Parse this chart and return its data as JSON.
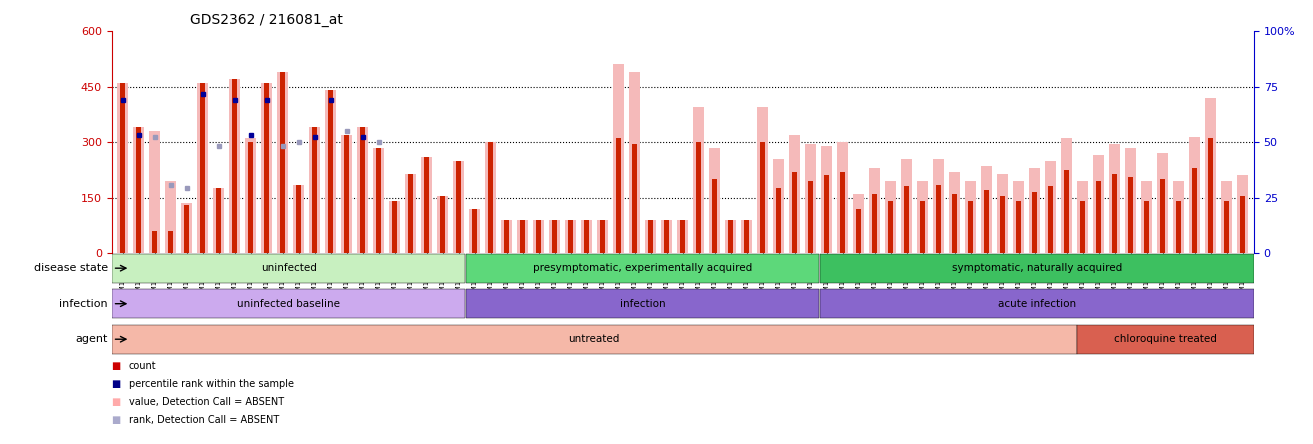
{
  "title": "GDS2362 / 216081_at",
  "ylim_left": [
    0,
    600
  ],
  "ylim_right": [
    0,
    100
  ],
  "yticks_left": [
    0,
    150,
    300,
    450,
    600
  ],
  "yticks_right": [
    0,
    25,
    50,
    75,
    100
  ],
  "left_tick_color": "#cc0000",
  "right_tick_color": "#0000cc",
  "samples": [
    "GSM123732",
    "GSM123736",
    "GSM123740",
    "GSM123744",
    "GSM123746",
    "GSM123750",
    "GSM123752",
    "GSM123756",
    "GSM123758",
    "GSM123761",
    "GSM123763",
    "GSM123765",
    "GSM123769",
    "GSM123771",
    "GSM123774",
    "GSM123778",
    "GSM123780",
    "GSM123784",
    "GSM123787",
    "GSM123791",
    "GSM123799",
    "GSM123800",
    "GSM123730",
    "GSM123734",
    "GSM123738",
    "GSM123742",
    "GSM123745",
    "GSM123748",
    "GSM123751",
    "GSM123754",
    "GSM123757",
    "GSM123760",
    "GSM123762",
    "GSM123764",
    "GSM123767",
    "GSM123770",
    "GSM123773",
    "GSM123777",
    "GSM123779",
    "GSM123782",
    "GSM123786",
    "GSM123789",
    "GSM123793",
    "GSM123797",
    "GSM123729",
    "GSM123733",
    "GSM123737",
    "GSM123741",
    "GSM123747",
    "GSM123753",
    "GSM123759",
    "GSM123766",
    "GSM123772",
    "GSM123775",
    "GSM123781",
    "GSM123785",
    "GSM123788",
    "GSM123792",
    "GSM123796",
    "GSM123731",
    "GSM123735",
    "GSM123739",
    "GSM123743",
    "GSM123749",
    "GSM123755",
    "GSM123768",
    "GSM123776",
    "GSM123783",
    "GSM123790",
    "GSM123794",
    "GSM123798"
  ],
  "red_bars": [
    460,
    340,
    60,
    60,
    130,
    460,
    175,
    470,
    300,
    460,
    490,
    185,
    340,
    440,
    320,
    340,
    285,
    140,
    215,
    260,
    155,
    250,
    120,
    300,
    90,
    90,
    90,
    90,
    90,
    90,
    90,
    310,
    295,
    90,
    90,
    90,
    300,
    200,
    90,
    90,
    300,
    175,
    220,
    195,
    210,
    220,
    120,
    160,
    140,
    180,
    140,
    185,
    160,
    140,
    170,
    155,
    140,
    165,
    180,
    225,
    140,
    195,
    215,
    205,
    140,
    200,
    140,
    230,
    310,
    140,
    155
  ],
  "pink_bars": [
    460,
    340,
    330,
    195,
    135,
    460,
    175,
    470,
    310,
    460,
    490,
    185,
    340,
    440,
    320,
    340,
    285,
    140,
    215,
    260,
    155,
    250,
    120,
    300,
    90,
    90,
    90,
    90,
    90,
    90,
    90,
    510,
    490,
    90,
    90,
    90,
    395,
    285,
    90,
    90,
    395,
    255,
    320,
    295,
    290,
    300,
    160,
    230,
    195,
    255,
    195,
    255,
    220,
    195,
    235,
    215,
    195,
    230,
    250,
    310,
    195,
    265,
    295,
    285,
    195,
    270,
    195,
    315,
    420,
    195,
    210
  ],
  "dark_dots_left": [
    415,
    320,
    null,
    null,
    null,
    430,
    null,
    415,
    320,
    415,
    null,
    null,
    315,
    415,
    null,
    315,
    null,
    null,
    null,
    null,
    null,
    null,
    null,
    null,
    null,
    null,
    null,
    null,
    null,
    null,
    null,
    null,
    null,
    null,
    null,
    null,
    null,
    null,
    null,
    null,
    null,
    null,
    null,
    null,
    null,
    null,
    null,
    null,
    null,
    null,
    null,
    null,
    null,
    null,
    null,
    null,
    null,
    null,
    null,
    null,
    null,
    null,
    null,
    null,
    null,
    null,
    null,
    null,
    null,
    null,
    null
  ],
  "dark_dots_right": [
    70,
    54,
    null,
    null,
    null,
    72,
    null,
    70,
    54,
    70,
    null,
    null,
    53,
    69,
    null,
    53,
    null,
    null,
    null,
    null,
    null,
    null,
    null,
    null,
    null,
    null,
    null,
    null,
    null,
    null,
    null,
    null,
    null,
    null,
    null,
    null,
    null,
    null,
    null,
    null,
    null,
    null,
    null,
    null,
    null,
    null,
    null,
    null,
    null,
    null,
    null,
    null,
    null,
    null,
    null,
    null,
    null,
    null,
    null,
    null,
    null,
    null,
    null,
    null,
    null,
    null,
    null,
    null,
    null,
    null,
    null
  ],
  "light_dots_left": [
    null,
    null,
    315,
    185,
    175,
    null,
    290,
    null,
    null,
    null,
    290,
    300,
    null,
    null,
    330,
    null,
    300,
    null,
    null,
    null,
    null,
    null,
    null,
    null,
    null,
    null,
    null,
    null,
    null,
    null,
    null,
    null,
    null,
    null,
    null,
    null,
    null,
    null,
    null,
    null,
    null,
    null,
    null,
    null,
    null,
    null,
    null,
    null,
    null,
    null,
    null,
    null,
    null,
    null,
    null,
    null,
    null,
    null,
    null,
    null,
    null,
    null,
    null,
    null,
    null,
    null,
    null,
    null,
    null,
    null,
    null
  ],
  "n_uninfected": 22,
  "n_presymptomatic": 22,
  "n_symptomatic": 27,
  "n_untreated": 60,
  "n_chloroquine": 11,
  "ds_colors": [
    "#c8f0c0",
    "#5dd87a",
    "#3dc060"
  ],
  "ds_labels": [
    "uninfected",
    "presymptomatic, experimentally acquired",
    "symptomatic, naturally acquired"
  ],
  "inf_colors": [
    "#ccaaee",
    "#8866cc",
    "#8866cc"
  ],
  "inf_labels": [
    "uninfected baseline",
    "infection",
    "acute infection"
  ],
  "ag_colors": [
    "#f5b8a8",
    "#d96050"
  ],
  "ag_labels": [
    "untreated",
    "chloroquine treated"
  ],
  "legend_items": [
    {
      "color": "#cc0000",
      "label": "count"
    },
    {
      "color": "#000088",
      "label": "percentile rank within the sample"
    },
    {
      "color": "#ffaaaa",
      "label": "value, Detection Call = ABSENT"
    },
    {
      "color": "#aaaacc",
      "label": "rank, Detection Call = ABSENT"
    }
  ]
}
